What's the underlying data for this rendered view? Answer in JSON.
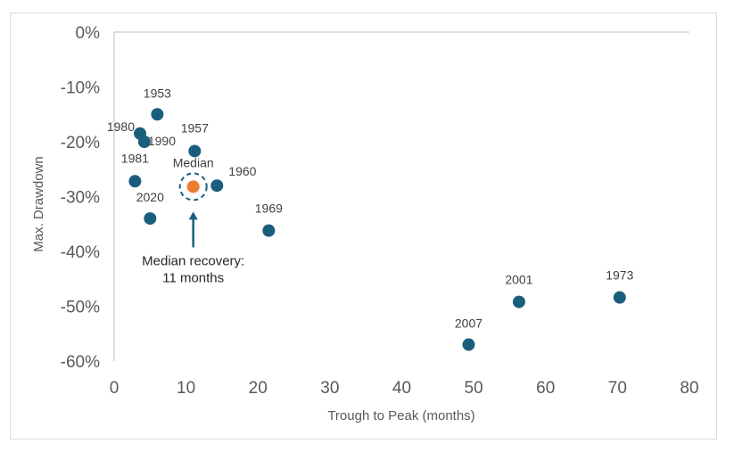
{
  "chart_data": {
    "type": "scatter",
    "title": "",
    "xlabel": "Trough to Peak (months)",
    "ylabel": "Max. Drawdown",
    "xlim": [
      0,
      80
    ],
    "ylim": [
      -60,
      0
    ],
    "x_ticks": [
      0,
      10,
      20,
      30,
      40,
      50,
      60,
      70,
      80
    ],
    "y_ticks": [
      0,
      -10,
      -20,
      -30,
      -40,
      -50,
      -60
    ],
    "y_tick_format": "percent",
    "grid": false,
    "legend": "none",
    "colors": {
      "points": "#1a5e7e",
      "median": "#ed7d31",
      "ring": "#1a5e7e"
    },
    "points": [
      {
        "label": "1953",
        "x": 6,
        "y": -15
      },
      {
        "label": "1980",
        "x": 3.6,
        "y": -18.5
      },
      {
        "label": "1990",
        "x": 4.2,
        "y": -20
      },
      {
        "label": "1957",
        "x": 11.2,
        "y": -21.7
      },
      {
        "label": "1981",
        "x": 2.9,
        "y": -27.2
      },
      {
        "label": "1960",
        "x": 14.3,
        "y": -28
      },
      {
        "label": "2020",
        "x": 5,
        "y": -34
      },
      {
        "label": "1969",
        "x": 21.5,
        "y": -36.2
      },
      {
        "label": "2001",
        "x": 56.3,
        "y": -49.2
      },
      {
        "label": "1973",
        "x": 70.3,
        "y": -48.4
      },
      {
        "label": "2007",
        "x": 49.3,
        "y": -57
      }
    ],
    "median": {
      "label": "Median",
      "x": 11,
      "y": -28.2
    },
    "annotation": {
      "line1": "Median recovery:",
      "line2": "11 months"
    }
  }
}
